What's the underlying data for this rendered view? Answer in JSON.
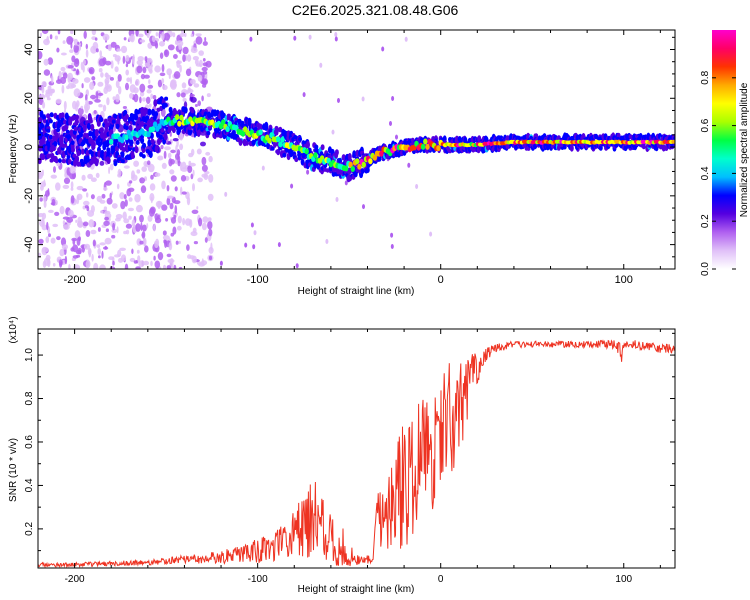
{
  "title": "C2E6.2025.321.08.48.G06",
  "colors": {
    "snr_line": "#ee3322",
    "axis": "#000000",
    "background": "#ffffff"
  },
  "chart_data": [
    {
      "type": "heatmap",
      "name": "spectrogram",
      "title": "C2E6.2025.321.08.48.G06",
      "xlabel": "Height of straight line (km)",
      "ylabel": "Frequency (Hz)",
      "xlim": [
        -220,
        128
      ],
      "ylim": [
        -50,
        48
      ],
      "x_ticks": [
        -200,
        -100,
        0,
        100
      ],
      "y_ticks": [
        -40,
        -20,
        0,
        20,
        40
      ],
      "x_tick_labels": [
        "-200",
        "-100",
        "0",
        "100"
      ],
      "y_tick_labels": [
        "-40",
        "-20",
        "0",
        "20",
        "40"
      ],
      "ridge": {
        "x": [
          -220,
          -200,
          -180,
          -160,
          -150,
          -140,
          -120,
          -100,
          -90,
          -80,
          -70,
          -60,
          -50,
          -45,
          -40,
          -30,
          -20,
          -10,
          0,
          20,
          40,
          60,
          80,
          100,
          128
        ],
        "freq": [
          4,
          3,
          3,
          6,
          11,
          11,
          9,
          5,
          3,
          0,
          -4,
          -6,
          -8,
          -7,
          -5,
          -2,
          0,
          1,
          1,
          1,
          2,
          2,
          2,
          2,
          2
        ]
      },
      "colorbar": {
        "label": "Normalized spectral amplitude",
        "range": [
          0,
          1
        ],
        "ticks": [
          0.0,
          0.2,
          0.4,
          0.6,
          0.8
        ],
        "tick_labels": [
          "0.0",
          "0.2",
          "0.4",
          "0.6",
          "0.8"
        ],
        "colors": [
          "#ffffff",
          "#e0c0f8",
          "#b060f0",
          "#5500e0",
          "#0000ff",
          "#00bfff",
          "#00ffcc",
          "#00ff44",
          "#aaff00",
          "#ffff00",
          "#ffaa00",
          "#ff3300",
          "#ff0066",
          "#ff00cc"
        ]
      }
    },
    {
      "type": "line",
      "name": "snr",
      "xlabel": "Height of straight line (km)",
      "ylabel": "SNR (10 * v/v)",
      "y_multiplier": "(x10⁴)",
      "xlim": [
        -220,
        128
      ],
      "ylim": [
        0.02,
        1.12
      ],
      "x_ticks": [
        -200,
        -100,
        0,
        100
      ],
      "y_ticks": [
        0.2,
        0.4,
        0.6,
        0.8,
        1.0
      ],
      "x_tick_labels": [
        "-200",
        "-100",
        "0",
        "100"
      ],
      "y_tick_labels": [
        "0.2",
        "0.4",
        "0.6",
        "0.8",
        "1.0"
      ],
      "envelope": {
        "x": [
          -220,
          -200,
          -180,
          -160,
          -150,
          -140,
          -120,
          -105,
          -100,
          -90,
          -80,
          -75,
          -70,
          -65,
          -60,
          -50,
          -45,
          -40,
          -37,
          -35,
          -30,
          -25,
          -20,
          -15,
          -10,
          -5,
          0,
          5,
          10,
          15,
          20,
          25,
          30,
          40,
          60,
          80,
          95,
          99,
          100,
          105,
          120,
          128
        ],
        "base": [
          0.035,
          0.035,
          0.04,
          0.045,
          0.05,
          0.06,
          0.07,
          0.09,
          0.1,
          0.12,
          0.18,
          0.22,
          0.25,
          0.2,
          0.15,
          0.1,
          0.06,
          0.05,
          0.05,
          0.22,
          0.28,
          0.32,
          0.4,
          0.45,
          0.5,
          0.55,
          0.6,
          0.68,
          0.75,
          0.85,
          0.95,
          1.0,
          1.03,
          1.05,
          1.05,
          1.05,
          1.05,
          1.0,
          1.05,
          1.05,
          1.03,
          1.03
        ],
        "spread": [
          0.01,
          0.01,
          0.012,
          0.012,
          0.015,
          0.02,
          0.03,
          0.04,
          0.06,
          0.07,
          0.12,
          0.15,
          0.2,
          0.18,
          0.12,
          0.08,
          0.03,
          0.01,
          0.01,
          0.12,
          0.2,
          0.25,
          0.3,
          0.3,
          0.3,
          0.3,
          0.35,
          0.3,
          0.25,
          0.15,
          0.08,
          0.04,
          0.02,
          0.015,
          0.015,
          0.015,
          0.02,
          0.05,
          0.02,
          0.02,
          0.02,
          0.02
        ]
      }
    }
  ]
}
